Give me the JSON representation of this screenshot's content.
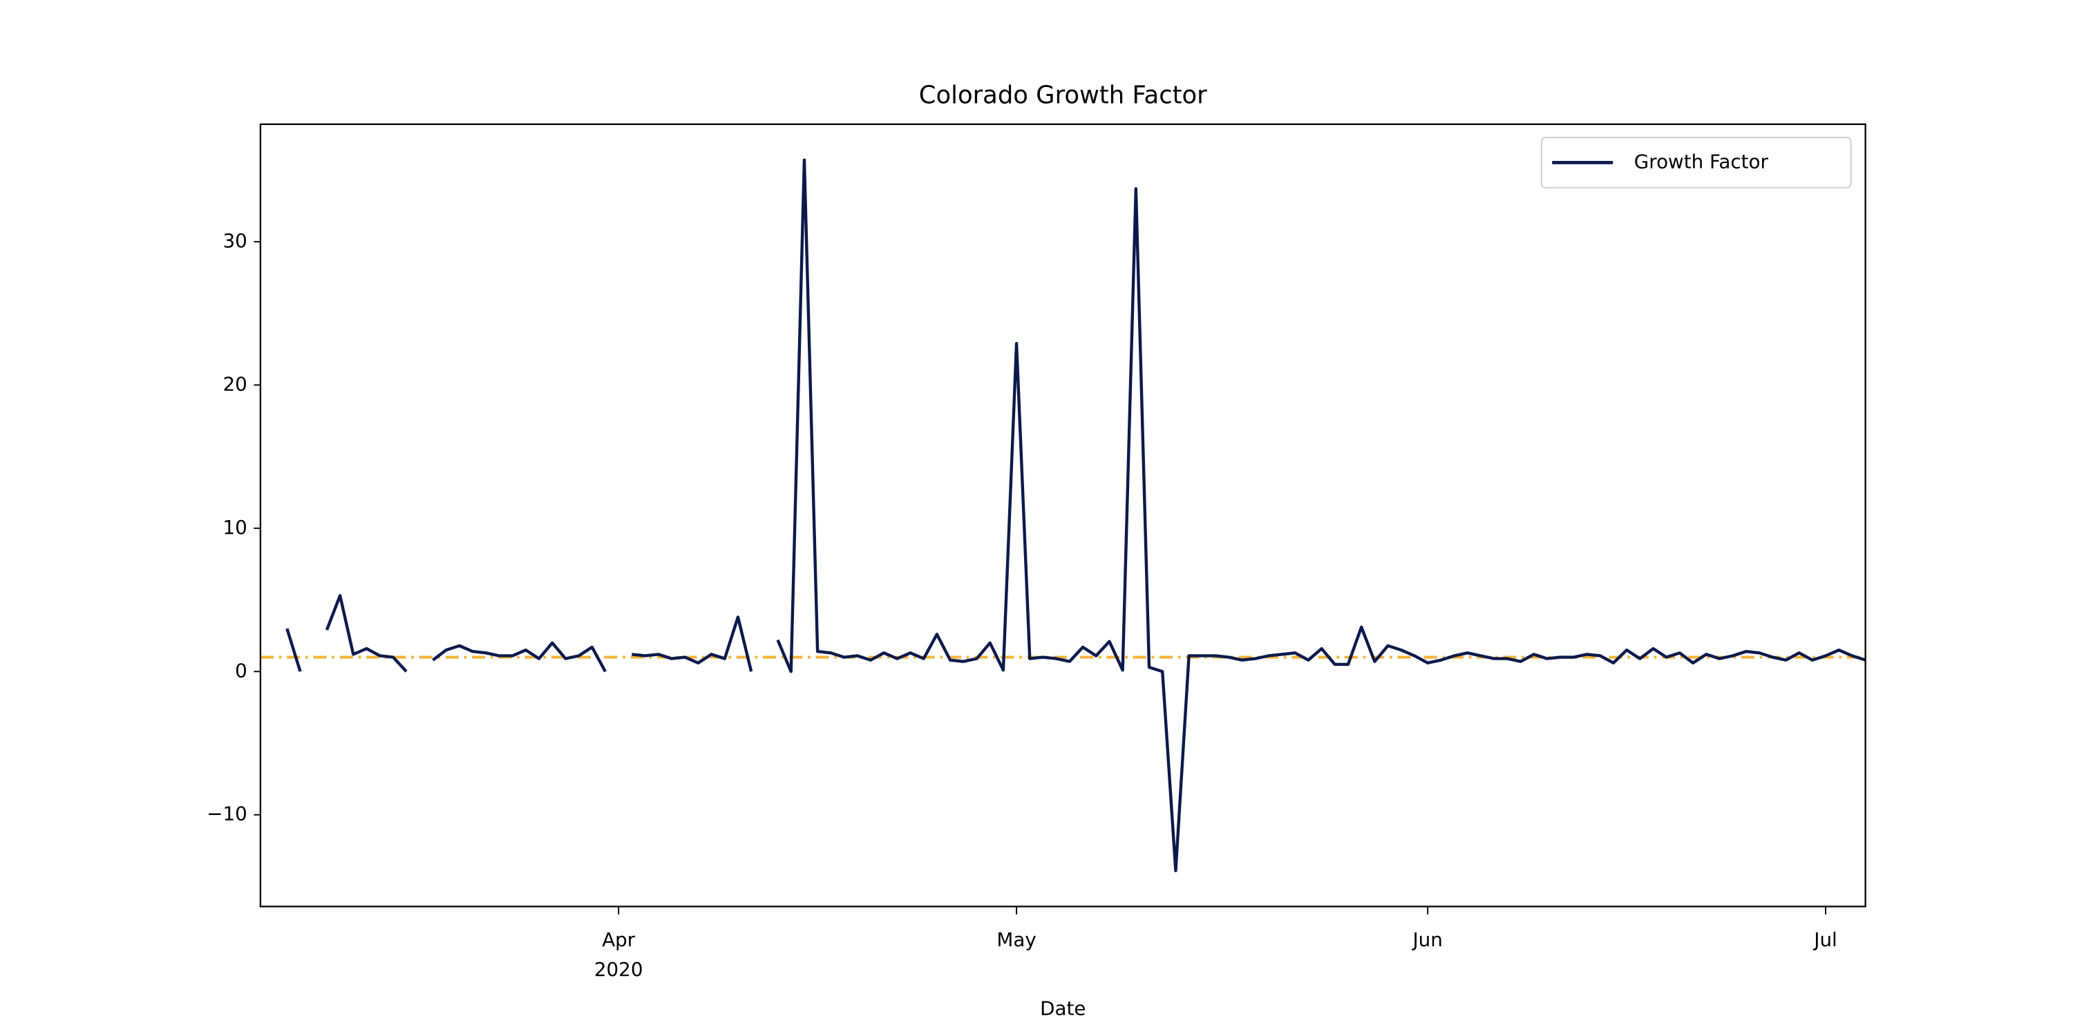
{
  "chart_data": {
    "type": "line",
    "title": "Colorado Growth Factor",
    "x_label": "Date",
    "categories": [
      null,
      null,
      null,
      null,
      null,
      null,
      null,
      null,
      null,
      null,
      null,
      null,
      null,
      null,
      null,
      null,
      null,
      null,
      null,
      null,
      null,
      null,
      null,
      null,
      null,
      null,
      null,
      "Apr\n2020",
      null,
      null,
      null,
      null,
      null,
      null,
      null,
      null,
      null,
      null,
      null,
      null,
      null,
      null,
      null,
      null,
      null,
      null,
      null,
      null,
      null,
      null,
      null,
      null,
      null,
      null,
      null,
      null,
      null,
      "May",
      null,
      null,
      null,
      null,
      null,
      null,
      null,
      null,
      null,
      null,
      null,
      null,
      null,
      null,
      null,
      null,
      null,
      null,
      null,
      null,
      null,
      null,
      null,
      null,
      null,
      null,
      null,
      null,
      null,
      null,
      "Jun",
      null,
      null,
      null,
      null,
      null,
      null,
      null,
      null,
      null,
      null,
      null,
      null,
      null,
      null,
      null,
      null,
      null,
      null,
      null,
      null,
      null,
      null,
      null,
      null,
      null,
      null,
      null,
      null,
      null,
      "Jul",
      null,
      null,
      null
    ],
    "series": [
      {
        "name": "Growth Factor",
        "color": "#0c1a4b",
        "values": [
          null,
          null,
          3.0,
          0,
          null,
          2.9,
          5.3,
          1.2,
          1.6,
          1.1,
          1.0,
          0,
          null,
          0.8,
          1.5,
          1.8,
          1.4,
          1.3,
          1.1,
          1.1,
          1.5,
          0.9,
          2.0,
          0.9,
          1.1,
          1.7,
          0,
          null,
          1.2,
          1.1,
          1.2,
          0.9,
          1.0,
          0.6,
          1.2,
          0.9,
          3.8,
          0,
          null,
          2.2,
          0,
          35.7,
          1.4,
          1.3,
          1.0,
          1.1,
          0.8,
          1.3,
          0.9,
          1.3,
          0.9,
          2.6,
          0.8,
          0.7,
          0.9,
          2.0,
          0.1,
          22.9,
          0.9,
          1.0,
          0.9,
          0.7,
          1.7,
          1.1,
          2.1,
          0.1,
          33.7,
          0.3,
          0,
          -13.9,
          1.1,
          1.1,
          1.1,
          1.0,
          0.8,
          0.9,
          1.1,
          1.2,
          1.3,
          0.8,
          1.6,
          0.5,
          0.5,
          3.1,
          0.7,
          1.8,
          1.5,
          1.1,
          0.6,
          0.8,
          1.1,
          1.3,
          1.1,
          0.9,
          0.9,
          0.7,
          1.2,
          0.9,
          1.0,
          1.0,
          1.2,
          1.1,
          0.6,
          1.5,
          0.9,
          1.6,
          1.0,
          1.3,
          0.6,
          1.2,
          0.9,
          1.1,
          1.4,
          1.3,
          1.0,
          0.8,
          1.3,
          0.8,
          1.1,
          1.5,
          1.1,
          0.8
        ]
      }
    ],
    "reference_line": {
      "value": 1,
      "color": "#f5b43c"
    },
    "ylim": [
      -16.4,
      38.2
    ],
    "yticks": [
      {
        "value": -10,
        "label": "−10"
      },
      0,
      10,
      20,
      30
    ],
    "legend": "upper right"
  }
}
